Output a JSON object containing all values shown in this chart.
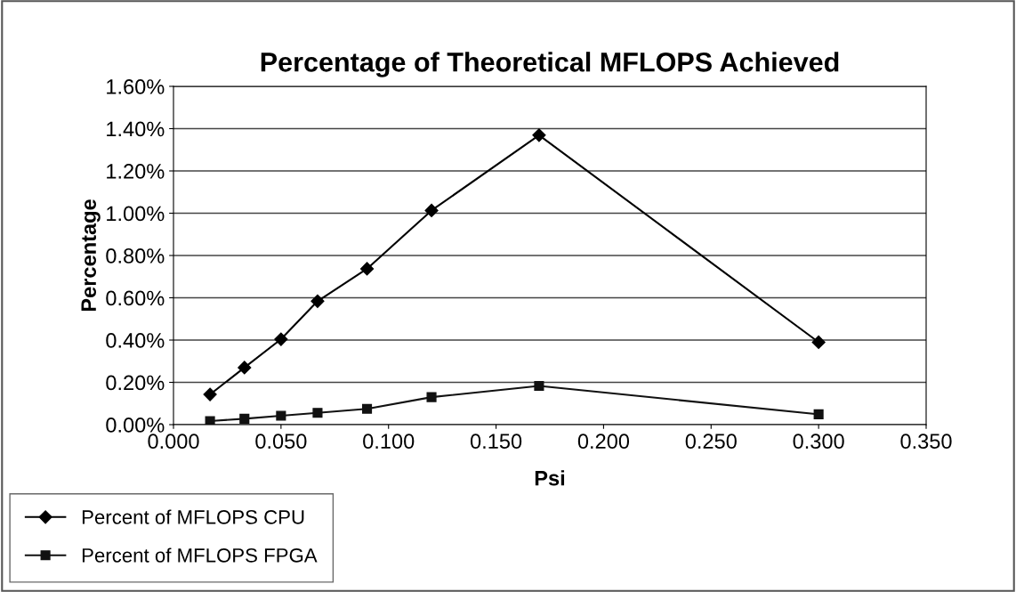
{
  "chart_data": {
    "type": "line",
    "title": "Percentage of Theoretical MFLOPS Achieved",
    "xlabel": "Psi",
    "ylabel": "Percentage",
    "x": [
      0.017,
      0.033,
      0.05,
      0.067,
      0.09,
      0.12,
      0.17,
      0.3
    ],
    "series": [
      {
        "name": "Percent of MFLOPS CPU",
        "color": "#000000",
        "marker": "diamond",
        "values": [
          0.143,
          0.27,
          0.404,
          0.584,
          0.737,
          1.013,
          1.369,
          0.39
        ]
      },
      {
        "name": "Percent of MFLOPS FPGA",
        "color": "#111111",
        "marker": "square",
        "values": [
          0.017,
          0.028,
          0.042,
          0.056,
          0.075,
          0.13,
          0.183,
          0.049
        ]
      }
    ],
    "xlim": [
      0,
      0.35
    ],
    "xticks": [
      {
        "value": 0,
        "label": "0.000"
      },
      {
        "value": 0.05,
        "label": "0.050"
      },
      {
        "value": 0.1,
        "label": "0.100"
      },
      {
        "value": 0.15,
        "label": "0.150"
      },
      {
        "value": 0.2,
        "label": "0.200"
      },
      {
        "value": 0.25,
        "label": "0.250"
      },
      {
        "value": 0.3,
        "label": "0.300"
      },
      {
        "value": 0.35,
        "label": "0.350"
      }
    ],
    "ylim": [
      0,
      1.6
    ],
    "yticks": [
      {
        "value": 0,
        "label": "0.00%"
      },
      {
        "value": 0.2,
        "label": "0.20%"
      },
      {
        "value": 0.4,
        "label": "0.40%"
      },
      {
        "value": 0.6,
        "label": "0.60%"
      },
      {
        "value": 0.8,
        "label": "0.80%"
      },
      {
        "value": 1.0,
        "label": "1.00%"
      },
      {
        "value": 1.2,
        "label": "1.20%"
      },
      {
        "value": 1.4,
        "label": "1.40%"
      },
      {
        "value": 1.6,
        "label": "1.60%"
      }
    ],
    "grid": "y",
    "legend": "bottom left",
    "line_style": "solid"
  }
}
